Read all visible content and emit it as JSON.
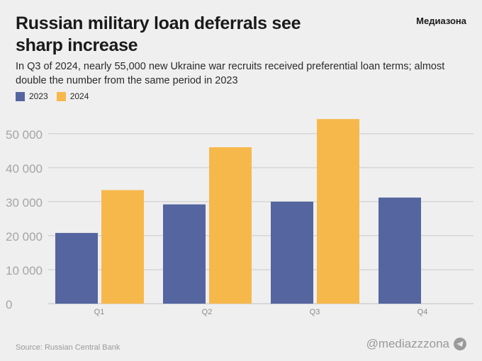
{
  "header": {
    "title": "Russian military loan deferrals see sharp increase",
    "subtitle": "In Q3 of 2024, nearly 55,000 new Ukraine war recruits received preferential loan terms; almost double the number from the same period in 2023",
    "brand": "Медиазона"
  },
  "footer": {
    "source": "Source: Russian Central Bank",
    "handle": "@mediazzzona",
    "handle_icon": "telegram-icon"
  },
  "colors": {
    "series_2023": "#5565a0",
    "series_2024": "#f7b84b",
    "grid": "#c9c9c9",
    "tick_text": "#a5a5a5",
    "background": "#efefef"
  },
  "chart_data": {
    "type": "bar",
    "categories": [
      "Q1",
      "Q2",
      "Q3",
      "Q4"
    ],
    "series": [
      {
        "name": "2023",
        "values": [
          20800,
          29200,
          30000,
          31200
        ]
      },
      {
        "name": "2024",
        "values": [
          33400,
          46000,
          54300,
          null
        ]
      }
    ],
    "y_ticks": [
      "0",
      "10 000",
      "20 000",
      "30 000",
      "40 000",
      "50 000"
    ],
    "y_tick_values": [
      0,
      10000,
      20000,
      30000,
      40000,
      50000
    ],
    "ylim": [
      0,
      56000
    ],
    "grid": "horizontal",
    "legend_position": "top-left"
  }
}
